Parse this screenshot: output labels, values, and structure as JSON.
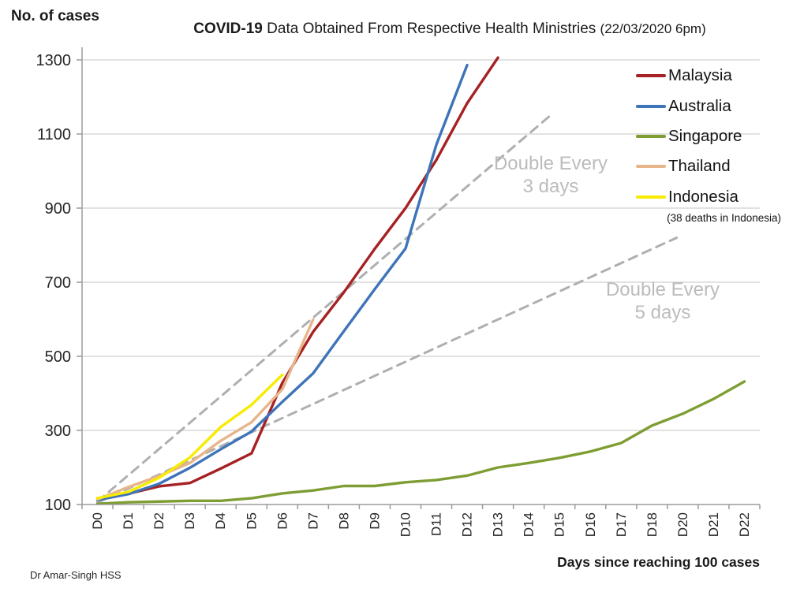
{
  "header": {
    "y_axis_title": "No. of cases",
    "title_bold": "COVID-19",
    "title_rest": " Data Obtained From Respective Health Ministries ",
    "title_suffix": "(22/03/2020 6pm)"
  },
  "legend": {
    "items": [
      {
        "label": "Malaysia",
        "color": "#A62123"
      },
      {
        "label": "Australia",
        "color": "#3E74B8"
      },
      {
        "label": "Singapore",
        "color": "#7E9D33"
      },
      {
        "label": "Thailand",
        "color": "#E7B58C"
      },
      {
        "label": "Indonesia",
        "color": "#F7EC00"
      }
    ],
    "note": "(38 deaths in Indonesia)"
  },
  "footer": {
    "x_axis_title": "Days since reaching 100 cases",
    "credit": "Dr Amar-Singh HSS"
  },
  "chart_data": {
    "type": "line",
    "title": "COVID-19 Data Obtained From Respective Health Ministries (22/03/2020 6pm)",
    "xlabel": "Days since reaching 100 cases",
    "ylabel": "No. of cases",
    "ylim": [
      100,
      1300
    ],
    "y_ticks": [
      100,
      300,
      500,
      700,
      900,
      1100,
      1300
    ],
    "categories": [
      "D0",
      "D1",
      "D2",
      "D3",
      "D4",
      "D5",
      "D6",
      "D7",
      "D8",
      "D9",
      "D10",
      "D11",
      "D12",
      "D13",
      "D14",
      "D15",
      "D16",
      "D17",
      "D18",
      "D20",
      "D21",
      "D22"
    ],
    "x_tick_rotation": -90,
    "grid": "horizontal",
    "grid_color": "#C6C6C6",
    "axis_color": "#9B9B9B",
    "legend_position": "top-right",
    "series": [
      {
        "name": "Malaysia",
        "color": "#A62123",
        "values": [
          117,
          129,
          149,
          158,
          197,
          238,
          428,
          566,
          673,
          790,
          900,
          1030,
          1183,
          1306
        ]
      },
      {
        "name": "Australia",
        "color": "#3E74B8",
        "values": [
          112,
          128,
          156,
          199,
          249,
          297,
          377,
          454,
          568,
          681,
          791,
          1071,
          1286
        ]
      },
      {
        "name": "Singapore",
        "color": "#7E9D33",
        "values": [
          102,
          106,
          108,
          110,
          110,
          117,
          130,
          138,
          150,
          150,
          160,
          166,
          178,
          200,
          212,
          226,
          243,
          266,
          313,
          345,
          385,
          432
        ]
      },
      {
        "name": "Thailand",
        "color": "#E7B58C",
        "values": [
          114,
          147,
          177,
          212,
          272,
          322,
          411,
          599
        ]
      },
      {
        "name": "Indonesia",
        "color": "#F7EC00",
        "values": [
          117,
          134,
          172,
          227,
          309,
          369,
          450
        ]
      }
    ],
    "guides": [
      {
        "name": "double-every-3-days",
        "label1": "Double Every",
        "label2": "3 days",
        "style": "dashed",
        "color": "#AFAFAF",
        "from": [
          0,
          108
        ],
        "to": [
          14.7,
          1150
        ]
      },
      {
        "name": "double-every-5-days",
        "label1": "Double Every",
        "label2": "5 days",
        "style": "dashed",
        "color": "#AFAFAF",
        "from": [
          0,
          105
        ],
        "to": [
          18.8,
          820
        ]
      }
    ]
  }
}
